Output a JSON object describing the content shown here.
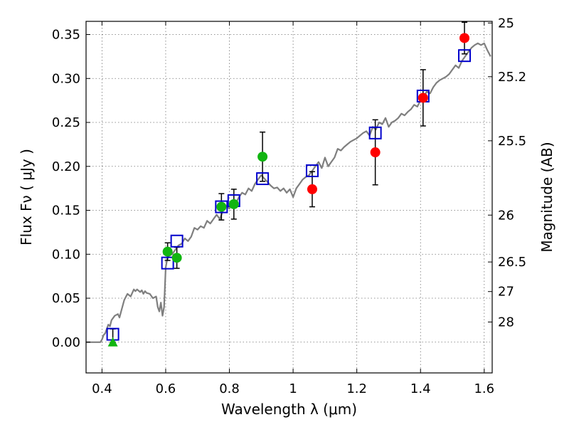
{
  "chart_data": {
    "type": "scatter",
    "xlabel": "Wavelength  λ (μm)",
    "ylabel": "Flux  Fν  ( μJy )",
    "y2label": "Magnitude (AB)",
    "xlim": [
      0.35,
      1.625
    ],
    "ylim": [
      -0.035,
      0.365
    ],
    "grid": true,
    "x_ticks": [
      {
        "value": 0.4,
        "label": "0.4"
      },
      {
        "value": 0.6,
        "label": "0.6"
      },
      {
        "value": 0.8,
        "label": "0.8"
      },
      {
        "value": 1.0,
        "label": "1"
      },
      {
        "value": 1.2,
        "label": "1.2"
      },
      {
        "value": 1.4,
        "label": "1.4"
      },
      {
        "value": 1.6,
        "label": "1.6"
      }
    ],
    "y_ticks": [
      {
        "value": 0.0,
        "label": "0.00"
      },
      {
        "value": 0.05,
        "label": "0.05"
      },
      {
        "value": 0.1,
        "label": "0.10"
      },
      {
        "value": 0.15,
        "label": "0.15"
      },
      {
        "value": 0.2,
        "label": "0.20"
      },
      {
        "value": 0.25,
        "label": "0.25"
      },
      {
        "value": 0.3,
        "label": "0.30"
      },
      {
        "value": 0.35,
        "label": "0.35"
      }
    ],
    "y2_ticks": [
      {
        "value": 25,
        "label": "25"
      },
      {
        "value": 25.2,
        "label": "25.2"
      },
      {
        "value": 25.5,
        "label": "25.5"
      },
      {
        "value": 26,
        "label": "26"
      },
      {
        "value": 26.5,
        "label": "26.5"
      },
      {
        "value": 27,
        "label": "27"
      },
      {
        "value": 28,
        "label": "28"
      }
    ],
    "colors": {
      "model": "#7f7f7f",
      "model_points": "#0000cc",
      "green_points": "#11b511",
      "red_points": "#ff0000",
      "errorbars": "#000000"
    },
    "model_spectrum": {
      "x": [
        0.35,
        0.38,
        0.395,
        0.4,
        0.405,
        0.41,
        0.415,
        0.42,
        0.425,
        0.43,
        0.44,
        0.45,
        0.455,
        0.46,
        0.47,
        0.48,
        0.49,
        0.5,
        0.505,
        0.51,
        0.52,
        0.525,
        0.53,
        0.535,
        0.54,
        0.55,
        0.56,
        0.57,
        0.575,
        0.58,
        0.585,
        0.59,
        0.595,
        0.6,
        0.605,
        0.61,
        0.62,
        0.63,
        0.64,
        0.65,
        0.66,
        0.67,
        0.68,
        0.69,
        0.7,
        0.71,
        0.72,
        0.73,
        0.74,
        0.75,
        0.76,
        0.77,
        0.78,
        0.79,
        0.8,
        0.81,
        0.82,
        0.83,
        0.84,
        0.85,
        0.86,
        0.87,
        0.88,
        0.89,
        0.9,
        0.91,
        0.92,
        0.93,
        0.94,
        0.95,
        0.96,
        0.97,
        0.98,
        0.99,
        1.0,
        1.01,
        1.02,
        1.03,
        1.04,
        1.05,
        1.06,
        1.07,
        1.08,
        1.09,
        1.1,
        1.11,
        1.12,
        1.13,
        1.14,
        1.15,
        1.16,
        1.17,
        1.18,
        1.19,
        1.2,
        1.21,
        1.22,
        1.23,
        1.24,
        1.25,
        1.26,
        1.27,
        1.28,
        1.29,
        1.3,
        1.31,
        1.32,
        1.33,
        1.34,
        1.35,
        1.36,
        1.37,
        1.38,
        1.39,
        1.4,
        1.41,
        1.42,
        1.43,
        1.44,
        1.45,
        1.46,
        1.47,
        1.48,
        1.49,
        1.5,
        1.51,
        1.52,
        1.53,
        1.54,
        1.55,
        1.56,
        1.57,
        1.58,
        1.59,
        1.6,
        1.61,
        1.62
      ],
      "y": [
        0.0,
        0.0,
        0.0,
        0.003,
        0.008,
        0.01,
        0.015,
        0.02,
        0.018,
        0.025,
        0.03,
        0.032,
        0.028,
        0.035,
        0.048,
        0.055,
        0.052,
        0.06,
        0.058,
        0.06,
        0.057,
        0.059,
        0.055,
        0.058,
        0.056,
        0.055,
        0.05,
        0.052,
        0.04,
        0.035,
        0.045,
        0.03,
        0.04,
        0.085,
        0.095,
        0.098,
        0.1,
        0.105,
        0.11,
        0.112,
        0.118,
        0.115,
        0.12,
        0.13,
        0.128,
        0.132,
        0.13,
        0.138,
        0.135,
        0.14,
        0.145,
        0.14,
        0.15,
        0.155,
        0.152,
        0.16,
        0.158,
        0.165,
        0.17,
        0.168,
        0.175,
        0.172,
        0.18,
        0.185,
        0.19,
        0.186,
        0.182,
        0.178,
        0.175,
        0.176,
        0.172,
        0.175,
        0.17,
        0.174,
        0.165,
        0.175,
        0.18,
        0.185,
        0.188,
        0.19,
        0.195,
        0.2,
        0.205,
        0.198,
        0.21,
        0.2,
        0.205,
        0.21,
        0.22,
        0.218,
        0.222,
        0.225,
        0.228,
        0.23,
        0.232,
        0.235,
        0.238,
        0.24,
        0.235,
        0.245,
        0.242,
        0.25,
        0.248,
        0.255,
        0.245,
        0.25,
        0.252,
        0.255,
        0.26,
        0.258,
        0.262,
        0.265,
        0.27,
        0.268,
        0.275,
        0.28,
        0.285,
        0.283,
        0.29,
        0.295,
        0.298,
        0.3,
        0.302,
        0.305,
        0.31,
        0.315,
        0.312,
        0.32,
        0.325,
        0.33,
        0.335,
        0.338,
        0.34,
        0.338,
        0.34,
        0.332,
        0.325
      ]
    },
    "series": [
      {
        "marker": "open-square",
        "color": "#0000cc",
        "x": [
          0.434,
          0.606,
          0.635,
          0.775,
          0.814,
          0.904,
          1.06,
          1.258,
          1.408,
          1.538
        ],
        "y": [
          0.009,
          0.09,
          0.115,
          0.154,
          0.161,
          0.186,
          0.195,
          0.238,
          0.28,
          0.326
        ]
      },
      {
        "marker": "filled-circle",
        "color": "#11b511",
        "x": [
          0.606,
          0.635,
          0.775,
          0.814,
          0.904
        ],
        "y": [
          0.103,
          0.096,
          0.154,
          0.157,
          0.211
        ],
        "yerr": [
          0.01,
          0.012,
          0.015,
          0.017,
          0.028
        ]
      },
      {
        "marker": "filled-circle",
        "color": "#ff0000",
        "x": [
          1.06,
          1.258,
          1.408,
          1.538
        ],
        "y": [
          0.174,
          0.216,
          0.278,
          0.346
        ],
        "yerr": [
          0.02,
          0.037,
          0.032,
          0.018
        ]
      },
      {
        "marker": "triangle",
        "color": "#11b511",
        "x": [
          0.434
        ],
        "y": [
          0.0
        ],
        "yerr_up": [
          0.015
        ]
      }
    ]
  }
}
